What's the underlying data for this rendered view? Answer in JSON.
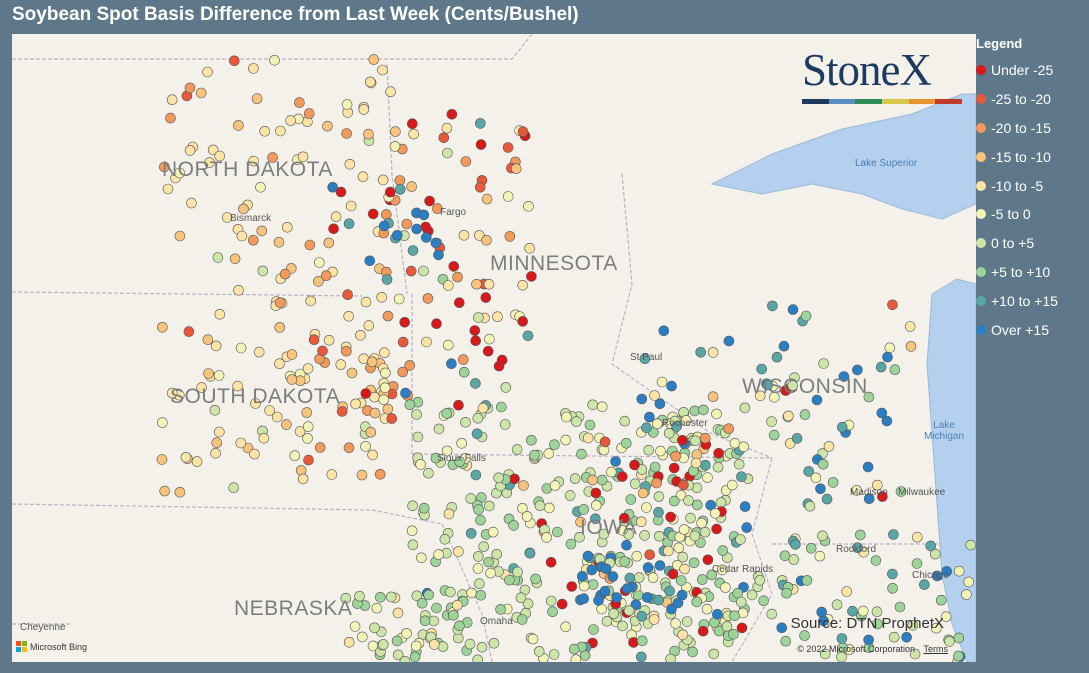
{
  "title": "Soybean Spot Basis Difference from Last Week (Cents/Bushel)",
  "logo": {
    "text": "StoneX",
    "bar_colors": [
      "#1e3a5f",
      "#5b8ec4",
      "#2e8b57",
      "#d6c84a",
      "#e8952e",
      "#c0392b"
    ]
  },
  "legend": {
    "title": "Legend",
    "items": [
      {
        "label": "Under -25",
        "color": "#d7191c"
      },
      {
        "label": "-25 to -20",
        "color": "#e8593b"
      },
      {
        "label": "-20 to -15",
        "color": "#f29a5c"
      },
      {
        "label": "-15 to -10",
        "color": "#f7c37d"
      },
      {
        "label": "-10 to -5",
        "color": "#fce3a6"
      },
      {
        "label": "-5 to 0",
        "color": "#f3f3b8"
      },
      {
        "label": "0 to +5",
        "color": "#cde5a8"
      },
      {
        "label": "+5 to +10",
        "color": "#9ed39a"
      },
      {
        "label": "+10 to +15",
        "color": "#5aa6a6"
      },
      {
        "label": "Over +15",
        "color": "#2b7ec1"
      }
    ]
  },
  "map": {
    "states": [
      "NORTH DAKOTA",
      "MINNESOTA",
      "SOUTH DAKOTA",
      "WISCONSIN",
      "NEBRASKA",
      "IOWA"
    ],
    "cities": [
      "Bismarck",
      "Fargo",
      "St Paul",
      "Rochester",
      "Madison",
      "Milwaukee",
      "Rockford",
      "Chicago",
      "Cedar Rapids",
      "Omaha",
      "Cheyenne",
      "Sioux Falls"
    ],
    "lakes": [
      "Lake Superior",
      "Lake Michigan"
    ],
    "source": "Source: DTN ProphetX",
    "copyright": "© 2022 Microsoft Corporation",
    "terms": "Terms",
    "provider": "Microsoft Bing"
  }
}
